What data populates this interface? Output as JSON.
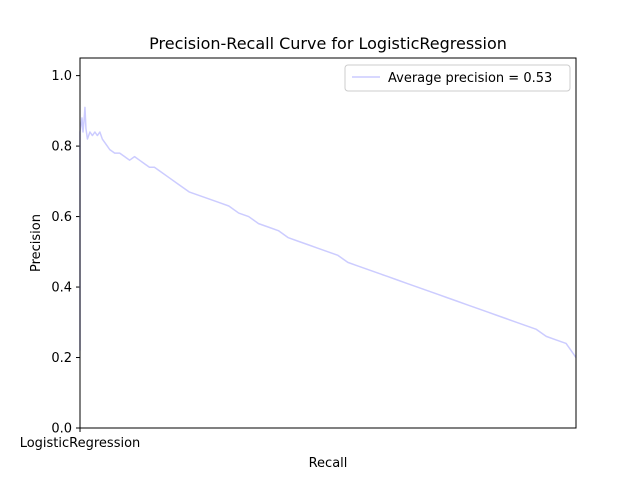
{
  "chart_data": {
    "type": "line",
    "title": "Precision-Recall Curve for LogisticRegression",
    "xlabel": "Recall",
    "ylabel": "Precision",
    "xlim": [
      0,
      1
    ],
    "ylim": [
      0,
      1.05
    ],
    "x_ticks": [
      {
        "value": 0,
        "label": "LogisticRegression"
      }
    ],
    "y_ticks": [
      0.0,
      0.2,
      0.4,
      0.6,
      0.8,
      1.0
    ],
    "y_tick_labels": [
      "0.0",
      "0.2",
      "0.4",
      "0.6",
      "0.8",
      "1.0"
    ],
    "grid": false,
    "legend_position": "top-right",
    "series": [
      {
        "name": "Average precision = 0.53",
        "color": "#ccccff",
        "x": [
          0.0,
          0.0,
          0.002,
          0.004,
          0.006,
          0.008,
          0.01,
          0.012,
          0.015,
          0.02,
          0.025,
          0.03,
          0.035,
          0.04,
          0.045,
          0.05,
          0.055,
          0.06,
          0.07,
          0.08,
          0.09,
          0.1,
          0.11,
          0.12,
          0.13,
          0.14,
          0.15,
          0.16,
          0.18,
          0.2,
          0.22,
          0.24,
          0.26,
          0.28,
          0.3,
          0.32,
          0.34,
          0.36,
          0.38,
          0.4,
          0.42,
          0.44,
          0.46,
          0.48,
          0.5,
          0.52,
          0.54,
          0.56,
          0.58,
          0.6,
          0.62,
          0.64,
          0.66,
          0.68,
          0.7,
          0.72,
          0.74,
          0.76,
          0.78,
          0.8,
          0.82,
          0.84,
          0.86,
          0.88,
          0.9,
          0.92,
          0.94,
          0.96,
          0.98,
          0.99,
          1.0
        ],
        "y": [
          0.22,
          0.84,
          0.86,
          0.88,
          0.84,
          0.87,
          0.91,
          0.85,
          0.82,
          0.84,
          0.83,
          0.84,
          0.83,
          0.84,
          0.82,
          0.81,
          0.8,
          0.79,
          0.78,
          0.78,
          0.77,
          0.76,
          0.77,
          0.76,
          0.75,
          0.74,
          0.74,
          0.73,
          0.71,
          0.69,
          0.67,
          0.66,
          0.65,
          0.64,
          0.63,
          0.61,
          0.6,
          0.58,
          0.57,
          0.56,
          0.54,
          0.53,
          0.52,
          0.51,
          0.5,
          0.49,
          0.47,
          0.46,
          0.45,
          0.44,
          0.43,
          0.42,
          0.41,
          0.4,
          0.39,
          0.38,
          0.37,
          0.36,
          0.35,
          0.34,
          0.33,
          0.32,
          0.31,
          0.3,
          0.29,
          0.28,
          0.26,
          0.25,
          0.24,
          0.22,
          0.2
        ]
      }
    ]
  }
}
